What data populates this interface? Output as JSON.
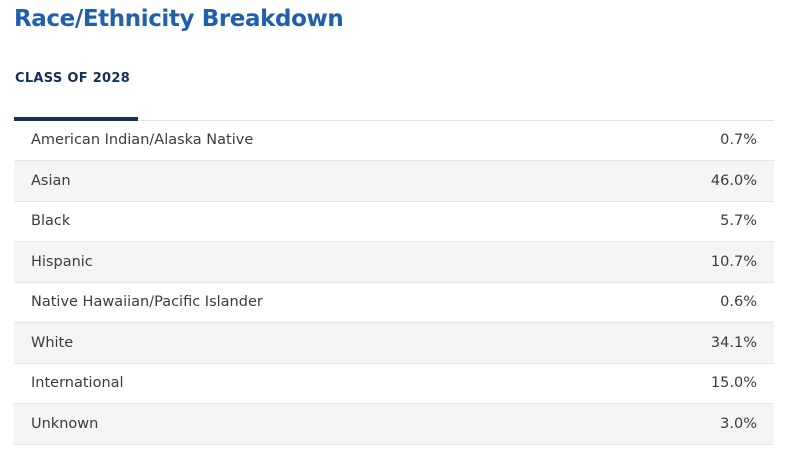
{
  "page": {
    "title": "Race/Ethnicity Breakdown"
  },
  "tabs": [
    {
      "label": "CLASS OF 2028",
      "active": true
    }
  ],
  "colors": {
    "title": "#1f5fad",
    "tab_active": "#15305a",
    "row_stripe": "#f5f5f5",
    "text": "#3c3c3c"
  },
  "table": {
    "rows": [
      {
        "label": "American Indian/Alaska Native",
        "value": "0.7%"
      },
      {
        "label": "Asian",
        "value": "46.0%"
      },
      {
        "label": "Black",
        "value": "5.7%"
      },
      {
        "label": "Hispanic",
        "value": "10.7%"
      },
      {
        "label": "Native Hawaiian/Pacific Islander",
        "value": "0.6%"
      },
      {
        "label": "White",
        "value": "34.1%"
      },
      {
        "label": "International",
        "value": "15.0%"
      },
      {
        "label": "Unknown",
        "value": "3.0%"
      }
    ]
  }
}
